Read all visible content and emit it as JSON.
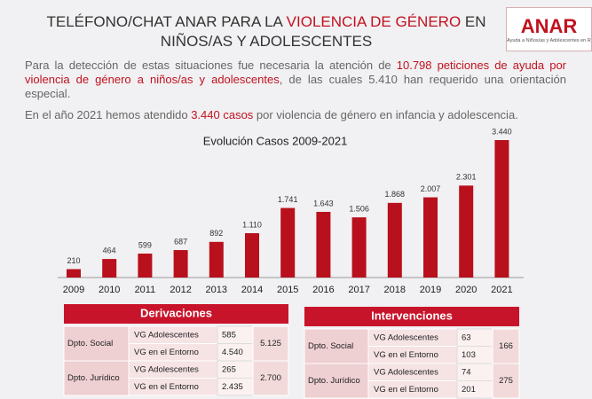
{
  "header": {
    "title_parts": [
      "TELÉFONO/CHAT ANAR PARA LA ",
      "VIOLENCIA DE GÉNERO",
      " EN NIÑOS/AS Y ADOLESCENTES"
    ],
    "logo": "ANAR",
    "logo_subtitle": "Ayuda a Niños/as y Adolescentes en Ri"
  },
  "paragraph1_parts": [
    "Para la detección de estas situaciones fue necesaria la atención de ",
    "10.798 peticiones de ayuda por violencia de género a niños/as y adolescentes",
    ", de las cuales 5.410 han requerido una orientación especial."
  ],
  "paragraph2_parts": [
    "En el año 2021 hemos atendido ",
    "3.440 casos",
    " por violencia de género en infancia y adolescencia."
  ],
  "chart_data": {
    "type": "bar",
    "title": "Evolución Casos 2009-2021",
    "categories": [
      "2009",
      "2010",
      "2011",
      "2012",
      "2013",
      "2014",
      "2015",
      "2016",
      "2017",
      "2018",
      "2019",
      "2020",
      "2021"
    ],
    "values": [
      210,
      464,
      599,
      687,
      892,
      1110,
      1741,
      1643,
      1506,
      1868,
      2007,
      2301,
      3440
    ],
    "value_labels": [
      "210",
      "464",
      "599",
      "687",
      "892",
      "1.110",
      "1.741",
      "1.643",
      "1.506",
      "1.868",
      "2.007",
      "2.301",
      "3.440"
    ],
    "color": "#b8101c"
  },
  "tables": [
    {
      "title": "Derivaciones",
      "groups": [
        {
          "dept": "Dpto. Social",
          "rows": [
            {
              "label": "VG Adolescentes",
              "value": "585"
            },
            {
              "label": "VG en el Entorno",
              "value": "4.540"
            }
          ],
          "total": "5.125"
        },
        {
          "dept": "Dpto. Jurídico",
          "rows": [
            {
              "label": "VG Adolescentes",
              "value": "265"
            },
            {
              "label": "VG en el Entorno",
              "value": "2.435"
            }
          ],
          "total": "2.700"
        }
      ]
    },
    {
      "title": "Intervenciones",
      "groups": [
        {
          "dept": "Dpto. Social",
          "rows": [
            {
              "label": "VG Adolescentes",
              "value": "63"
            },
            {
              "label": "VG en el Entorno",
              "value": "103"
            }
          ],
          "total": "166"
        },
        {
          "dept": "Dpto. Jurídico",
          "rows": [
            {
              "label": "VG Adolescentes",
              "value": "74"
            },
            {
              "label": "VG en el Entorno",
              "value": "201"
            }
          ],
          "total": "275"
        }
      ]
    }
  ]
}
